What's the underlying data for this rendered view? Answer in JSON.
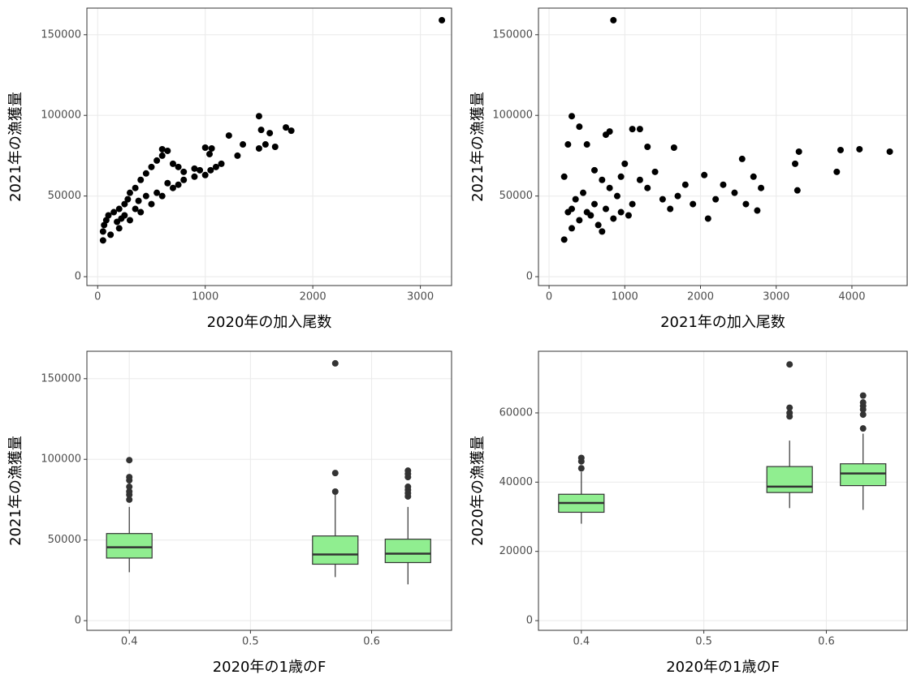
{
  "chart_data": [
    {
      "type": "scatter",
      "x_label": "2020年の加入尾数",
      "y_label": "2021年の漁獲量",
      "color": "#000000",
      "grid": true,
      "xlim": [
        -100,
        3290
      ],
      "ylim": [
        -5500,
        166500
      ],
      "xticks": [
        0,
        1000,
        2000,
        3000
      ],
      "yticks": [
        0,
        50000,
        100000,
        150000
      ],
      "x": [
        3200,
        1500,
        1750,
        1800,
        1520,
        1600,
        1220,
        1350,
        1650,
        1560,
        1500,
        1000,
        1060,
        1040,
        650,
        600,
        1150,
        1100,
        1050,
        950,
        1000,
        900,
        800,
        750,
        700,
        600,
        550,
        500,
        450,
        400,
        350,
        300,
        280,
        250,
        200,
        150,
        100,
        80,
        60,
        50,
        50,
        120,
        200,
        300,
        400,
        500,
        600,
        700,
        800,
        650,
        350,
        250,
        180,
        450,
        550,
        750,
        900,
        1300,
        380,
        220
      ],
      "values": [
        159000,
        99500,
        92500,
        90500,
        91000,
        89000,
        87500,
        82000,
        80500,
        82000,
        79500,
        80000,
        79500,
        76000,
        78000,
        79000,
        70000,
        68000,
        66000,
        66000,
        63000,
        62000,
        65000,
        68000,
        70000,
        75000,
        72000,
        68000,
        64000,
        60000,
        55000,
        52000,
        48000,
        45000,
        42000,
        40000,
        38000,
        35000,
        32000,
        28000,
        22500,
        26000,
        30000,
        35000,
        40000,
        45000,
        50000,
        55000,
        60000,
        58000,
        42000,
        38000,
        34000,
        50000,
        52000,
        57000,
        67000,
        75000,
        47000,
        36000
      ]
    },
    {
      "type": "scatter",
      "x_label": "2021年の加入尾数",
      "y_label": "2021年の漁獲量",
      "color": "#000000",
      "grid": true,
      "xlim": [
        -140,
        4730
      ],
      "ylim": [
        -5500,
        166500
      ],
      "xticks": [
        0,
        1000,
        2000,
        3000,
        4000
      ],
      "yticks": [
        0,
        50000,
        100000,
        150000
      ],
      "x": [
        850,
        300,
        400,
        1100,
        1200,
        800,
        750,
        250,
        500,
        1300,
        1650,
        4100,
        3850,
        4500,
        3300,
        3250,
        3800,
        2550,
        3280,
        2700,
        2800,
        2750,
        2600,
        2450,
        2300,
        2200,
        2100,
        2050,
        1900,
        1800,
        1700,
        1600,
        1500,
        1400,
        1300,
        1200,
        1100,
        1000,
        950,
        900,
        800,
        700,
        600,
        500,
        400,
        300,
        200,
        250,
        350,
        450,
        550,
        650,
        750,
        850,
        950,
        1050,
        200,
        300,
        600,
        700
      ],
      "values": [
        159000,
        99500,
        93000,
        91500,
        91500,
        90000,
        88000,
        82000,
        82000,
        80500,
        80000,
        79000,
        78500,
        77500,
        77500,
        70000,
        65000,
        73000,
        53500,
        62000,
        55000,
        41000,
        45000,
        52000,
        57000,
        48000,
        36000,
        63000,
        45000,
        57000,
        50000,
        42000,
        48000,
        65000,
        55000,
        60000,
        45000,
        70000,
        62000,
        50000,
        55000,
        60000,
        45000,
        40000,
        35000,
        30000,
        23000,
        40000,
        48000,
        52000,
        38000,
        32000,
        42000,
        36000,
        40000,
        38000,
        62000,
        42000,
        66000,
        28000
      ]
    },
    {
      "type": "box",
      "x_label": "2020年の1歳のF",
      "y_label": "2021年の漁獲量",
      "color": "#90ee90",
      "grid": true,
      "xlim": [
        0.365,
        0.666
      ],
      "ylim": [
        -6000,
        167000
      ],
      "xticks": [
        0.4,
        0.5,
        0.6
      ],
      "yticks": [
        0,
        50000,
        100000,
        150000
      ],
      "x": [
        0.4,
        0.57,
        0.63
      ],
      "boxes": [
        {
          "low": 30000,
          "q1": 38800,
          "median": 45500,
          "q3": 54000,
          "high": 70500,
          "outliers": [
            75000,
            78000,
            80000,
            83000,
            87000,
            89000,
            99500
          ]
        },
        {
          "low": 27000,
          "q1": 35000,
          "median": 41000,
          "q3": 52500,
          "high": 78000,
          "outliers": [
            80000,
            91500,
            159500
          ]
        },
        {
          "low": 22500,
          "q1": 36000,
          "median": 41500,
          "q3": 50500,
          "high": 70500,
          "outliers": [
            77000,
            79000,
            81000,
            83000,
            89000,
            91000,
            93000
          ]
        }
      ]
    },
    {
      "type": "box",
      "x_label": "2020年の1歳のF",
      "y_label": "2020年の漁獲量",
      "color": "#90ee90",
      "grid": true,
      "xlim": [
        0.365,
        0.666
      ],
      "ylim": [
        -2800,
        77800
      ],
      "xticks": [
        0.4,
        0.5,
        0.6
      ],
      "yticks": [
        0,
        20000,
        40000,
        60000
      ],
      "x": [
        0.4,
        0.57,
        0.63
      ],
      "boxes": [
        {
          "low": 28000,
          "q1": 31300,
          "median": 34000,
          "q3": 36500,
          "high": 43000,
          "outliers": [
            44000,
            46000,
            47000
          ]
        },
        {
          "low": 32500,
          "q1": 37000,
          "median": 38700,
          "q3": 44500,
          "high": 52000,
          "outliers": [
            59000,
            60000,
            61500,
            74000
          ]
        },
        {
          "low": 32000,
          "q1": 39000,
          "median": 42500,
          "q3": 45300,
          "high": 54000,
          "outliers": [
            55500,
            59500,
            61000,
            62000,
            63000,
            65000
          ]
        }
      ]
    }
  ]
}
